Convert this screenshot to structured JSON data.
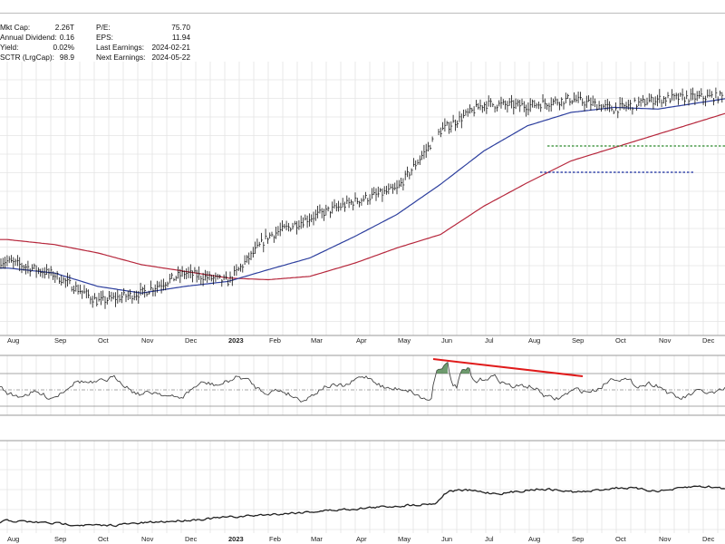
{
  "stats": {
    "left": [
      {
        "label": "Mkt Cap:",
        "value": "2.26T"
      },
      {
        "label": "Annual Dividend:",
        "value": "0.16"
      },
      {
        "label": "Yield:",
        "value": "0.02%"
      },
      {
        "label": "SCTR (LrgCap):",
        "value": "98.9"
      }
    ],
    "right": [
      {
        "label": "P/E:",
        "value": "75.70"
      },
      {
        "label": "EPS:",
        "value": "11.94"
      },
      {
        "label": "Last Earnings:",
        "value": "2024-02-21"
      },
      {
        "label": "Next Earnings:",
        "value": "2024-05-22"
      }
    ]
  },
  "colors": {
    "price_bars": "#111111",
    "sma_short": "#2d3f9e",
    "sma_long": "#b6273c",
    "resistance": "#2e8b2e",
    "support": "#1b2fa3",
    "divergence": "#e01b1b",
    "indicator_fill": "#3f7a3f",
    "grid": "#e4e4e4"
  },
  "chart_data": {
    "type": "line",
    "x_axis_labels": [
      "Aug",
      "Sep",
      "Oct",
      "Nov",
      "Dec",
      "2023",
      "Feb",
      "Mar",
      "Apr",
      "May",
      "Jun",
      "Jul",
      "Aug",
      "Sep",
      "Oct",
      "Nov",
      "Dec"
    ],
    "x_axis_bold_labels": [
      "2023"
    ],
    "panels": [
      {
        "name": "price",
        "style": "ohlc-bars",
        "y_axis": "unlabeled",
        "x": [
          "2022-08",
          "2022-09",
          "2022-10",
          "2022-11",
          "2022-12",
          "2023-01",
          "2023-02",
          "2023-03",
          "2023-04",
          "2023-05",
          "2023-06",
          "2023-07",
          "2023-08",
          "2023-09",
          "2023-10",
          "2023-11",
          "2023-12"
        ],
        "close_relative": [
          0.4,
          0.32,
          0.16,
          0.21,
          0.33,
          0.28,
          0.55,
          0.66,
          0.76,
          0.83,
          1.18,
          1.34,
          1.33,
          1.37,
          1.31,
          1.37,
          1.38
        ],
        "sma_short_relative": [
          0.36,
          0.33,
          0.25,
          0.21,
          0.25,
          0.28,
          0.35,
          0.42,
          0.55,
          0.68,
          0.86,
          1.06,
          1.21,
          1.29,
          1.32,
          1.31,
          1.35
        ],
        "sma_long_relative": [
          0.53,
          0.5,
          0.45,
          0.38,
          0.34,
          0.3,
          0.29,
          0.31,
          0.39,
          0.48,
          0.56,
          0.73,
          0.87,
          1.0,
          1.08,
          1.16,
          1.24
        ],
        "annotations": [
          "resistance line Sep–Dec",
          "support line Aug–Nov"
        ]
      },
      {
        "name": "oscillator",
        "style": "line",
        "annotations": [
          "declining red trendline Jun–Sep",
          "green shaded highs Jun"
        ]
      },
      {
        "name": "relative-strength",
        "style": "line"
      }
    ],
    "grid": true
  }
}
